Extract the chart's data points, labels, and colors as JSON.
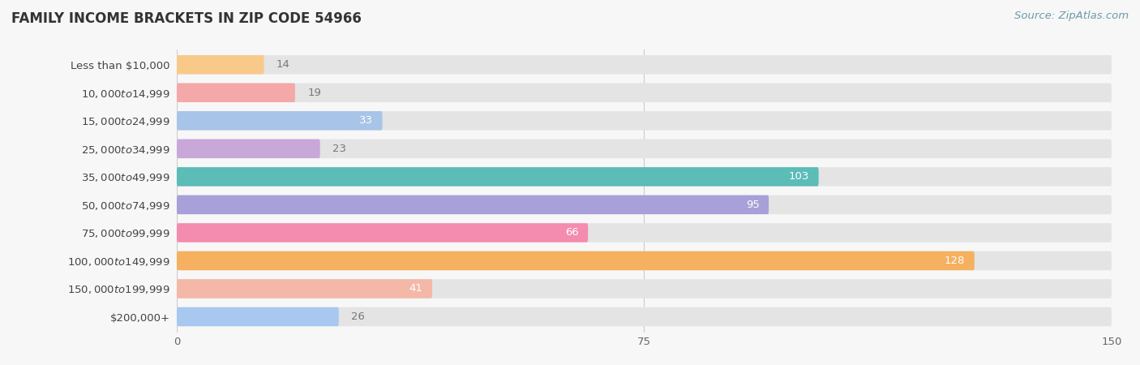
{
  "title": "FAMILY INCOME BRACKETS IN ZIP CODE 54966",
  "source": "Source: ZipAtlas.com",
  "categories": [
    "Less than $10,000",
    "$10,000 to $14,999",
    "$15,000 to $24,999",
    "$25,000 to $34,999",
    "$35,000 to $49,999",
    "$50,000 to $74,999",
    "$75,000 to $99,999",
    "$100,000 to $149,999",
    "$150,000 to $199,999",
    "$200,000+"
  ],
  "values": [
    14,
    19,
    33,
    23,
    103,
    95,
    66,
    128,
    41,
    26
  ],
  "bar_colors": [
    "#f9c98a",
    "#f4a8a8",
    "#a8c4e8",
    "#c8a8d8",
    "#5bbcb8",
    "#a8a0d8",
    "#f48cb0",
    "#f5b060",
    "#f4b8a8",
    "#a8c8f0"
  ],
  "background_color": "#f7f7f7",
  "bar_background_color": "#e4e4e4",
  "xlim": [
    0,
    150
  ],
  "xticks": [
    0,
    75,
    150
  ],
  "label_color_inside": "#ffffff",
  "label_color_outside": "#777777",
  "title_fontsize": 12,
  "label_fontsize": 9.5,
  "tick_fontsize": 9.5,
  "source_fontsize": 9.5,
  "source_color": "#6a9aaa",
  "inside_threshold": 30
}
